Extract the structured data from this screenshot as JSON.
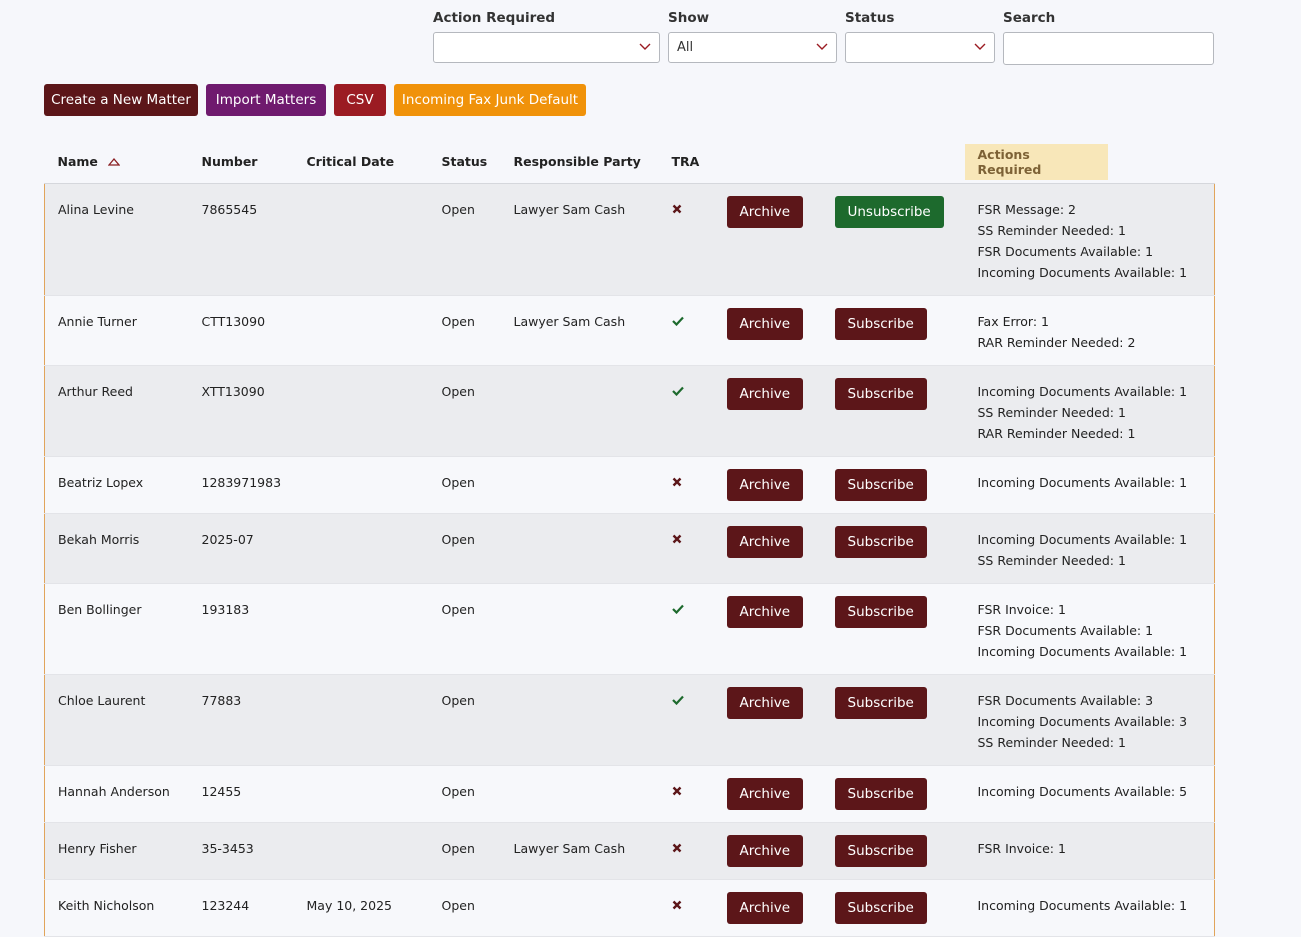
{
  "filters": [
    {
      "label": "Action Required",
      "value": null
    },
    {
      "label": "Show",
      "value": "All"
    },
    {
      "label": "Status",
      "value": null
    },
    {
      "label": "Search",
      "value": null
    }
  ],
  "toolbar": [
    "Create a New Matter",
    "Import Matters",
    "CSV",
    "Incoming Fax Junk Default"
  ],
  "table": {
    "headers": {
      "name": "Name",
      "number": "Number",
      "critical_date": "Critical Date",
      "status": "Status",
      "responsible_party": "Responsible Party",
      "tra": "TRA",
      "actions_required": "Actions Required"
    },
    "rows": [
      {
        "name": "Alina Levine",
        "number": "7865545",
        "critical_date": null,
        "status": "Open",
        "responsible_party": "Lawyer Sam Cash",
        "tra": false,
        "archive": "Archive",
        "subscription": "Unsubscribe",
        "subscribed": true,
        "actions": [
          "FSR Message: 2",
          "SS Reminder Needed: 1",
          "FSR Documents Available: 1",
          "Incoming Documents Available: 1"
        ]
      },
      {
        "name": "Annie Turner",
        "number": "CTT13090",
        "critical_date": null,
        "status": "Open",
        "responsible_party": "Lawyer Sam Cash",
        "tra": true,
        "archive": "Archive",
        "subscription": "Subscribe",
        "subscribed": false,
        "actions": [
          "Fax Error: 1",
          "RAR Reminder Needed: 2"
        ]
      },
      {
        "name": "Arthur Reed",
        "number": "XTT13090",
        "critical_date": null,
        "status": "Open",
        "responsible_party": null,
        "tra": true,
        "archive": "Archive",
        "subscription": "Subscribe",
        "subscribed": false,
        "actions": [
          "Incoming Documents Available: 1",
          "SS Reminder Needed: 1",
          "RAR Reminder Needed: 1"
        ]
      },
      {
        "name": "Beatriz Lopex",
        "number": "1283971983",
        "critical_date": null,
        "status": "Open",
        "responsible_party": null,
        "tra": false,
        "archive": "Archive",
        "subscription": "Subscribe",
        "subscribed": false,
        "actions": [
          "Incoming Documents Available: 1"
        ]
      },
      {
        "name": "Bekah Morris",
        "number": "2025-07",
        "critical_date": null,
        "status": "Open",
        "responsible_party": null,
        "tra": false,
        "archive": "Archive",
        "subscription": "Subscribe",
        "subscribed": false,
        "actions": [
          "Incoming Documents Available: 1",
          "SS Reminder Needed: 1"
        ]
      },
      {
        "name": "Ben Bollinger",
        "number": "193183",
        "critical_date": null,
        "status": "Open",
        "responsible_party": null,
        "tra": true,
        "archive": "Archive",
        "subscription": "Subscribe",
        "subscribed": false,
        "actions": [
          "FSR Invoice: 1",
          "FSR Documents Available: 1",
          "Incoming Documents Available: 1"
        ]
      },
      {
        "name": "Chloe Laurent",
        "number": "77883",
        "critical_date": null,
        "status": "Open",
        "responsible_party": null,
        "tra": true,
        "archive": "Archive",
        "subscription": "Subscribe",
        "subscribed": false,
        "actions": [
          "FSR Documents Available: 3",
          "Incoming Documents Available: 3",
          "SS Reminder Needed: 1"
        ]
      },
      {
        "name": "Hannah Anderson",
        "number": "12455",
        "critical_date": null,
        "status": "Open",
        "responsible_party": null,
        "tra": false,
        "archive": "Archive",
        "subscription": "Subscribe",
        "subscribed": false,
        "actions": [
          "Incoming Documents Available: 5"
        ]
      },
      {
        "name": "Henry Fisher",
        "number": "35-3453",
        "critical_date": null,
        "status": "Open",
        "responsible_party": "Lawyer Sam Cash",
        "tra": false,
        "archive": "Archive",
        "subscription": "Subscribe",
        "subscribed": false,
        "actions": [
          "FSR Invoice: 1"
        ]
      },
      {
        "name": "Keith Nicholson",
        "number": "123244",
        "critical_date": "May 10, 2025",
        "status": "Open",
        "responsible_party": null,
        "tra": false,
        "archive": "Archive",
        "subscription": "Subscribe",
        "subscribed": false,
        "actions": [
          "Incoming Documents Available: 1"
        ]
      }
    ]
  }
}
